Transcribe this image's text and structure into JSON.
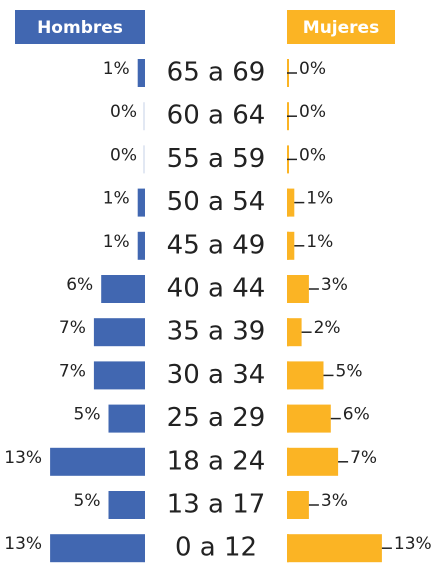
{
  "chart_data": {
    "type": "bar",
    "categories": [
      "65 a 69",
      "60 a 64",
      "55 a 59",
      "50 a 54",
      "45 a 49",
      "40 a 44",
      "35 a 39",
      "30 a 34",
      "25 a 29",
      "18 a 24",
      "13 a 17",
      "0 a 12"
    ],
    "series": [
      {
        "name": "Hombres",
        "color": "#4167b1",
        "values": [
          1,
          0,
          0,
          1,
          1,
          6,
          7,
          7,
          5,
          13,
          5,
          13
        ],
        "value_labels": [
          "1%",
          "0%",
          "0%",
          "1%",
          "1%",
          "6%",
          "7%",
          "7%",
          "5%",
          "13%",
          "5%",
          "13%"
        ]
      },
      {
        "name": "Mujeres",
        "color": "#fbb424",
        "values": [
          0,
          0,
          0,
          1,
          1,
          3,
          2,
          5,
          6,
          7,
          3,
          13
        ],
        "value_labels": [
          "0%",
          "0%",
          "0%",
          "1%",
          "1%",
          "3%",
          "2%",
          "5%",
          "6%",
          "7%",
          "3%",
          "13%"
        ]
      }
    ]
  }
}
